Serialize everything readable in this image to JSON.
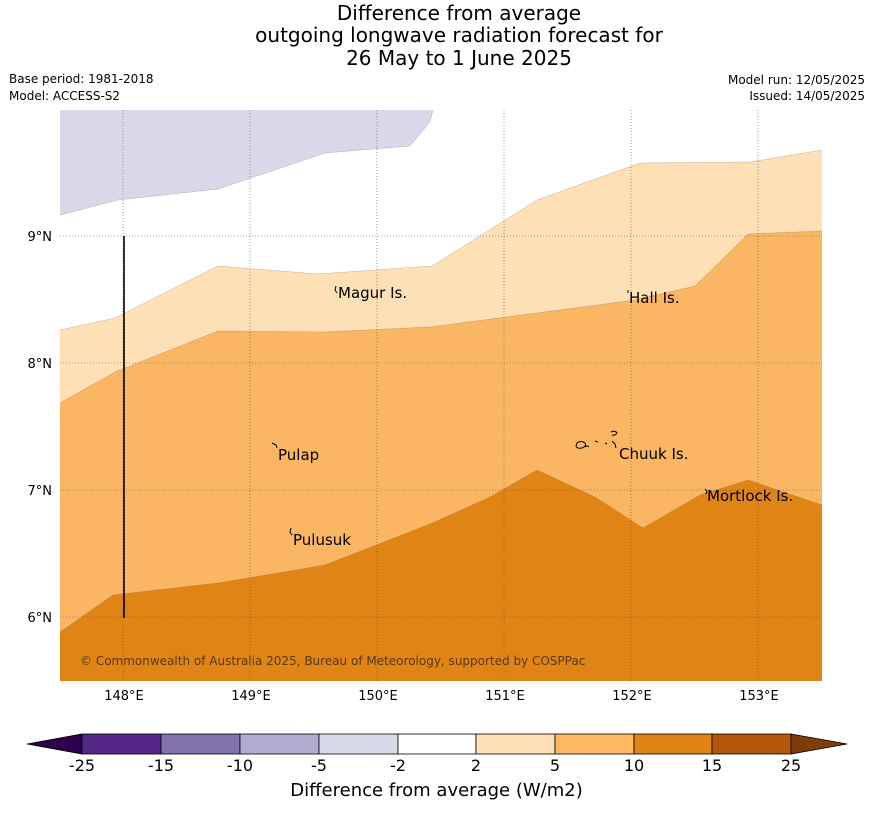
{
  "title": {
    "line1": "Difference from average",
    "line2": "outgoing longwave radiation forecast for",
    "line3": "26 May to 1 June 2025"
  },
  "meta": {
    "base_period": "Base period: 1981-2018",
    "model": "Model: ACCESS-S2",
    "model_run": "Model run: 12/05/2025",
    "issued": "Issued: 14/05/2025"
  },
  "map": {
    "lon_range": [
      147.5,
      153.5
    ],
    "lat_range": [
      5.5,
      10.0
    ],
    "lon_ticks": [
      "148°E",
      "149°E",
      "150°E",
      "151°E",
      "152°E",
      "153°E"
    ],
    "lat_ticks": [
      "9°N",
      "8°N",
      "7°N",
      "6°N"
    ],
    "places": [
      "Magur Is.",
      "Hall Is.",
      "Pulap",
      "Chuuk Is.",
      "Mortlock Is.",
      "Pulusuk"
    ],
    "copyright": "© Commonwealth of Australia 2025, Bureau of Meteorology, supported by COSPPac",
    "band_colors": {
      "lt_neg5": "#d8d8ea",
      "b2_5": "#fde0b6",
      "b5_10": "#fab662",
      "b10_15": "#e08415"
    }
  },
  "colorbar": {
    "ticks": [
      "-25",
      "-15",
      "-10",
      "-5",
      "-2",
      "2",
      "5",
      "10",
      "15",
      "25"
    ],
    "colors": [
      "#2d004b",
      "#542788",
      "#8073ac",
      "#b2abd2",
      "#d8daeb",
      "#ffffff",
      "#fee0b6",
      "#fdb863",
      "#e08214",
      "#b35806",
      "#7f3b08"
    ],
    "label": "Difference from average (W/m2)"
  }
}
